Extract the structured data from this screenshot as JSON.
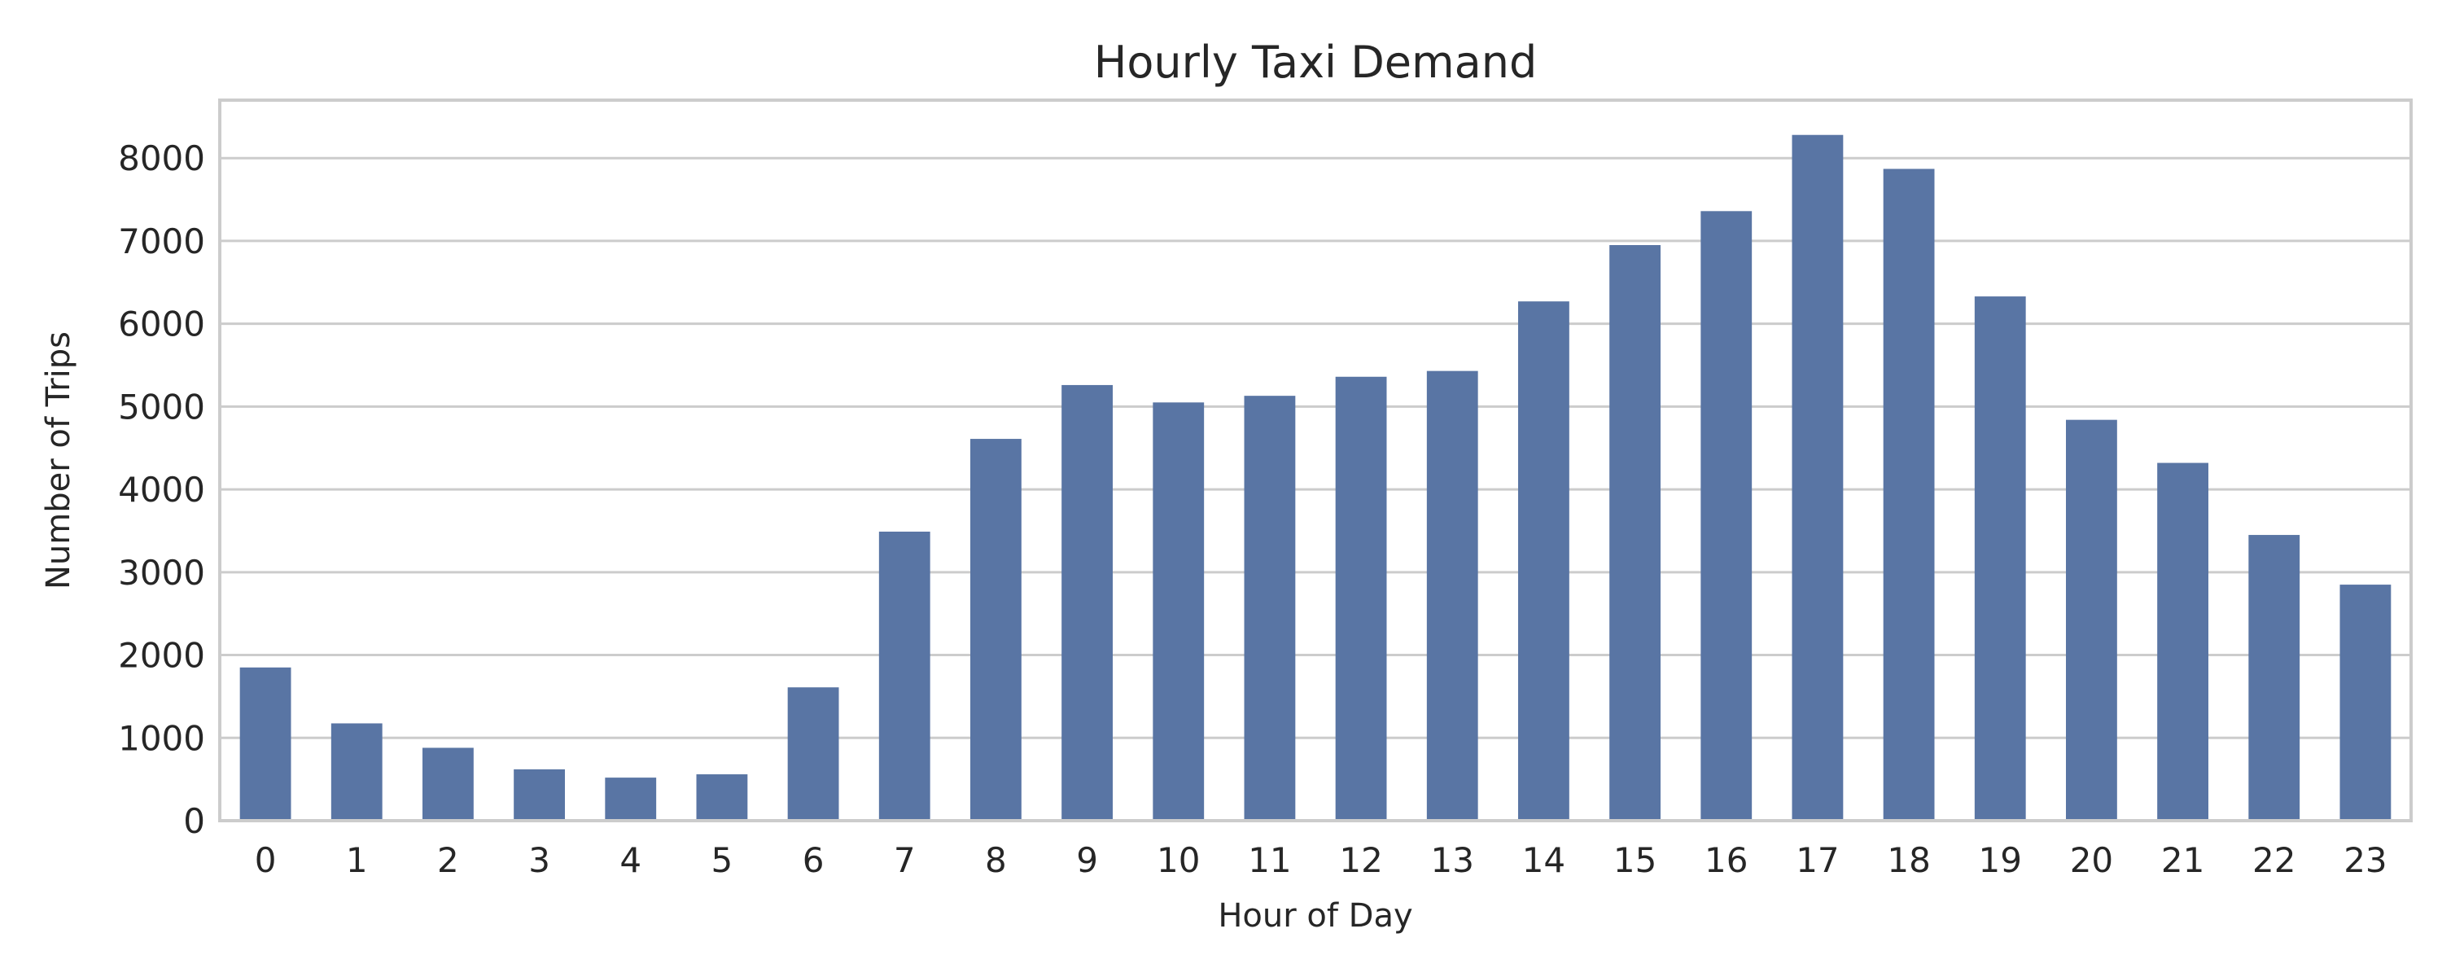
{
  "chart_data": {
    "type": "bar",
    "title": "Hourly Taxi Demand",
    "xlabel": "Hour of Day",
    "ylabel": "Number of Trips",
    "categories": [
      "0",
      "1",
      "2",
      "3",
      "4",
      "5",
      "6",
      "7",
      "8",
      "9",
      "10",
      "11",
      "12",
      "13",
      "14",
      "15",
      "16",
      "17",
      "18",
      "19",
      "20",
      "21",
      "22",
      "23"
    ],
    "values": [
      1850,
      1175,
      880,
      620,
      520,
      560,
      1610,
      3490,
      4610,
      5260,
      5050,
      5130,
      5360,
      5430,
      6270,
      6950,
      7360,
      8280,
      7870,
      6330,
      4840,
      4320,
      3450,
      2850
    ],
    "yticks": [
      0,
      1000,
      2000,
      3000,
      4000,
      5000,
      6000,
      7000,
      8000
    ],
    "ylim": [
      0,
      8700
    ],
    "grid": "horizontal",
    "legend": "none",
    "colors": {
      "bar": "#5975a4",
      "grid": "#cccccc",
      "text": "#262626",
      "background": "#ffffff"
    }
  }
}
